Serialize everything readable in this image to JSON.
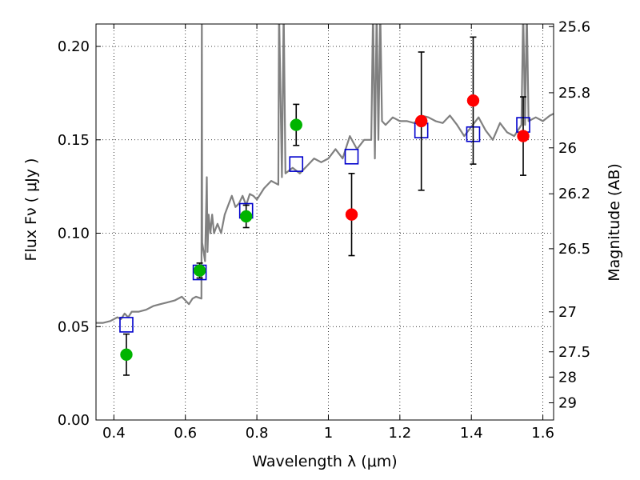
{
  "chart_data": {
    "type": "scatter",
    "xlabel": "Wavelength  λ (μm)",
    "ylabel": "Flux  Fν  ( μJy )",
    "ylabel_right": "Magnitude (AB)",
    "xlim": [
      0.35,
      1.63
    ],
    "ylim": [
      0.0,
      0.212
    ],
    "grid": true,
    "x_ticks": [
      0.4,
      0.6,
      0.8,
      1.0,
      1.2,
      1.4,
      1.6
    ],
    "x_tick_labels": [
      "0.4",
      "0.6",
      "0.8",
      "1",
      "1.2",
      "1.4",
      "1.6"
    ],
    "y_ticks": [
      0.0,
      0.05,
      0.1,
      0.15,
      0.2
    ],
    "y_tick_labels": [
      "0.00",
      "0.05",
      "0.10",
      "0.15",
      "0.20"
    ],
    "right_axis_ticks": [
      {
        "label": "25.6",
        "flux": 0.2106
      },
      {
        "label": "25.8",
        "flux": 0.1752
      },
      {
        "label": "26",
        "flux": 0.1457
      },
      {
        "label": "26.2",
        "flux": 0.1211
      },
      {
        "label": "26.5",
        "flux": 0.0917
      },
      {
        "label": "27",
        "flux": 0.0579
      },
      {
        "label": "27.5",
        "flux": 0.0365
      },
      {
        "label": "28",
        "flux": 0.023
      },
      {
        "label": "29",
        "flux": 0.0092
      }
    ],
    "series": [
      {
        "color": "#808080",
        "type": "line",
        "x": [
          0.35,
          0.37,
          0.39,
          0.41,
          0.42,
          0.43,
          0.44,
          0.45,
          0.47,
          0.49,
          0.51,
          0.53,
          0.55,
          0.57,
          0.59,
          0.61,
          0.62,
          0.63,
          0.645,
          0.646,
          0.647,
          0.655,
          0.66,
          0.662,
          0.665,
          0.67,
          0.675,
          0.68,
          0.69,
          0.7,
          0.71,
          0.72,
          0.73,
          0.74,
          0.75,
          0.76,
          0.77,
          0.78,
          0.79,
          0.8,
          0.82,
          0.84,
          0.86,
          0.862,
          0.87,
          0.875,
          0.88,
          0.9,
          0.92,
          0.94,
          0.96,
          0.98,
          1.0,
          1.02,
          1.04,
          1.06,
          1.08,
          1.1,
          1.12,
          1.125,
          1.13,
          1.135,
          1.14,
          1.145,
          1.15,
          1.16,
          1.18,
          1.2,
          1.22,
          1.24,
          1.26,
          1.28,
          1.3,
          1.32,
          1.34,
          1.36,
          1.38,
          1.4,
          1.42,
          1.44,
          1.46,
          1.48,
          1.5,
          1.52,
          1.54,
          1.545,
          1.55,
          1.555,
          1.56,
          1.58,
          1.6,
          1.62,
          1.63
        ],
        "y": [
          0.052,
          0.052,
          0.053,
          0.055,
          0.054,
          0.057,
          0.055,
          0.058,
          0.058,
          0.059,
          0.061,
          0.062,
          0.063,
          0.064,
          0.066,
          0.062,
          0.065,
          0.066,
          0.065,
          0.22,
          0.095,
          0.085,
          0.13,
          0.09,
          0.11,
          0.1,
          0.11,
          0.1,
          0.105,
          0.1,
          0.11,
          0.115,
          0.12,
          0.114,
          0.116,
          0.12,
          0.115,
          0.121,
          0.12,
          0.118,
          0.124,
          0.128,
          0.126,
          0.22,
          0.13,
          0.22,
          0.132,
          0.135,
          0.132,
          0.136,
          0.14,
          0.138,
          0.14,
          0.145,
          0.14,
          0.152,
          0.145,
          0.15,
          0.15,
          0.22,
          0.14,
          0.22,
          0.15,
          0.22,
          0.16,
          0.158,
          0.162,
          0.16,
          0.16,
          0.159,
          0.163,
          0.162,
          0.16,
          0.159,
          0.163,
          0.158,
          0.152,
          0.157,
          0.162,
          0.155,
          0.15,
          0.159,
          0.154,
          0.152,
          0.158,
          0.22,
          0.158,
          0.22,
          0.16,
          0.162,
          0.16,
          0.163,
          0.164
        ]
      },
      {
        "color": "#0000cc",
        "type": "scatter",
        "marker": "open-square",
        "x": [
          0.435,
          0.64,
          0.77,
          0.91,
          1.065,
          1.26,
          1.405,
          1.545
        ],
        "y": [
          0.051,
          0.079,
          0.112,
          0.137,
          0.141,
          0.155,
          0.153,
          0.158
        ]
      },
      {
        "color": "#00b400",
        "type": "scatter",
        "marker": "circle",
        "x": [
          0.435,
          0.64,
          0.77,
          0.91
        ],
        "y": [
          0.035,
          0.08,
          0.109,
          0.158
        ],
        "err": [
          0.011,
          0.004,
          0.006,
          0.011
        ]
      },
      {
        "color": "#ff0000",
        "type": "scatter",
        "marker": "circle",
        "x": [
          1.065,
          1.26,
          1.405,
          1.545
        ],
        "y": [
          0.11,
          0.16,
          0.171,
          0.152
        ],
        "err": [
          0.022,
          0.037,
          0.034,
          0.021
        ]
      }
    ]
  }
}
